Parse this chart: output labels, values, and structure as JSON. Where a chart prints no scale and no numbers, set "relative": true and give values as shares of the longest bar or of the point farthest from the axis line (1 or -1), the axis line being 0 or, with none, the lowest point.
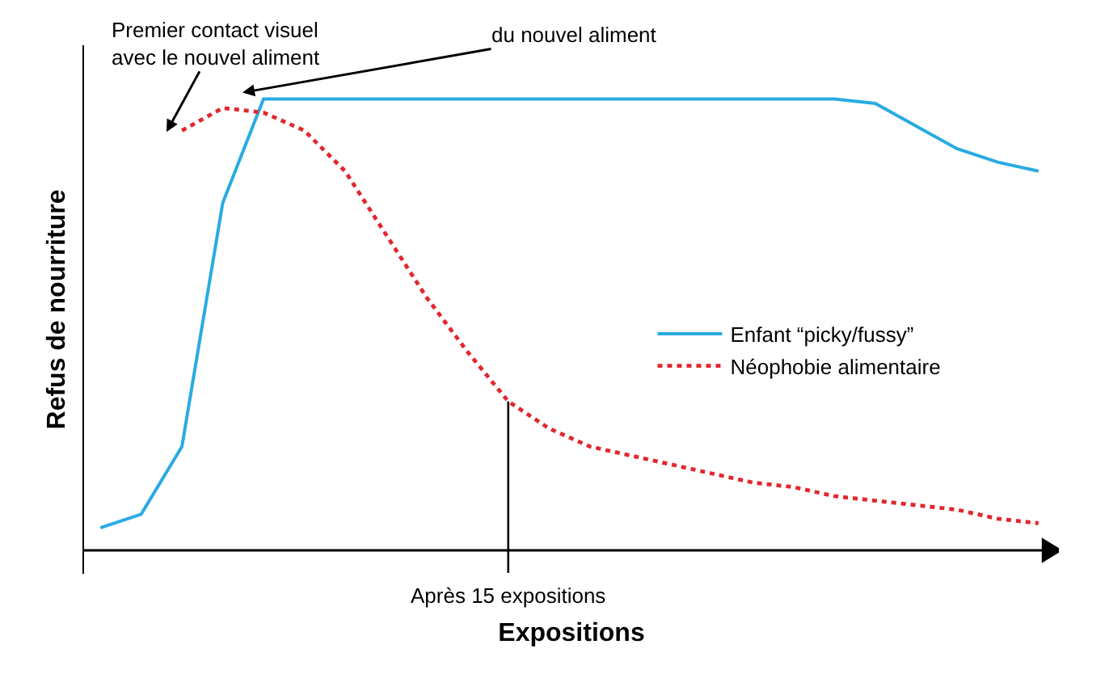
{
  "chart_data": {
    "type": "line",
    "relative": true,
    "xlabel": "Expositions",
    "ylabel": "Refus de nourriture",
    "categories": [
      null,
      null,
      null,
      null,
      null,
      null,
      null,
      null,
      null,
      null,
      null,
      null,
      null,
      null,
      null,
      null,
      null,
      null,
      null,
      null,
      null,
      null,
      null,
      null
    ],
    "series": [
      {
        "name": "Enfant “picky/fussy”",
        "color": "#29abe2",
        "line_style": "solid",
        "values": [
          0.05,
          0.08,
          0.23,
          0.77,
          1.0,
          1.0,
          1.0,
          1.0,
          1.0,
          1.0,
          1.0,
          1.0,
          1.0,
          1.0,
          1.0,
          1.0,
          1.0,
          1.0,
          1.0,
          0.99,
          0.94,
          0.89,
          0.86,
          0.84
        ]
      },
      {
        "name": "Néophobie alimentaire",
        "color": "#e0282e",
        "line_style": "dotted",
        "values": [
          null,
          null,
          0.93,
          0.98,
          0.97,
          0.93,
          0.84,
          0.7,
          0.56,
          0.44,
          0.33,
          0.27,
          0.23,
          0.21,
          0.19,
          0.17,
          0.15,
          0.14,
          0.12,
          0.11,
          0.1,
          0.09,
          0.07,
          0.06
        ]
      }
    ],
    "annotations": [
      "Premier contact visuel\navec le nouvel aliment",
      "du nouvel aliment",
      "Après 15 expositions"
    ],
    "legend": "right",
    "marker": "none"
  }
}
